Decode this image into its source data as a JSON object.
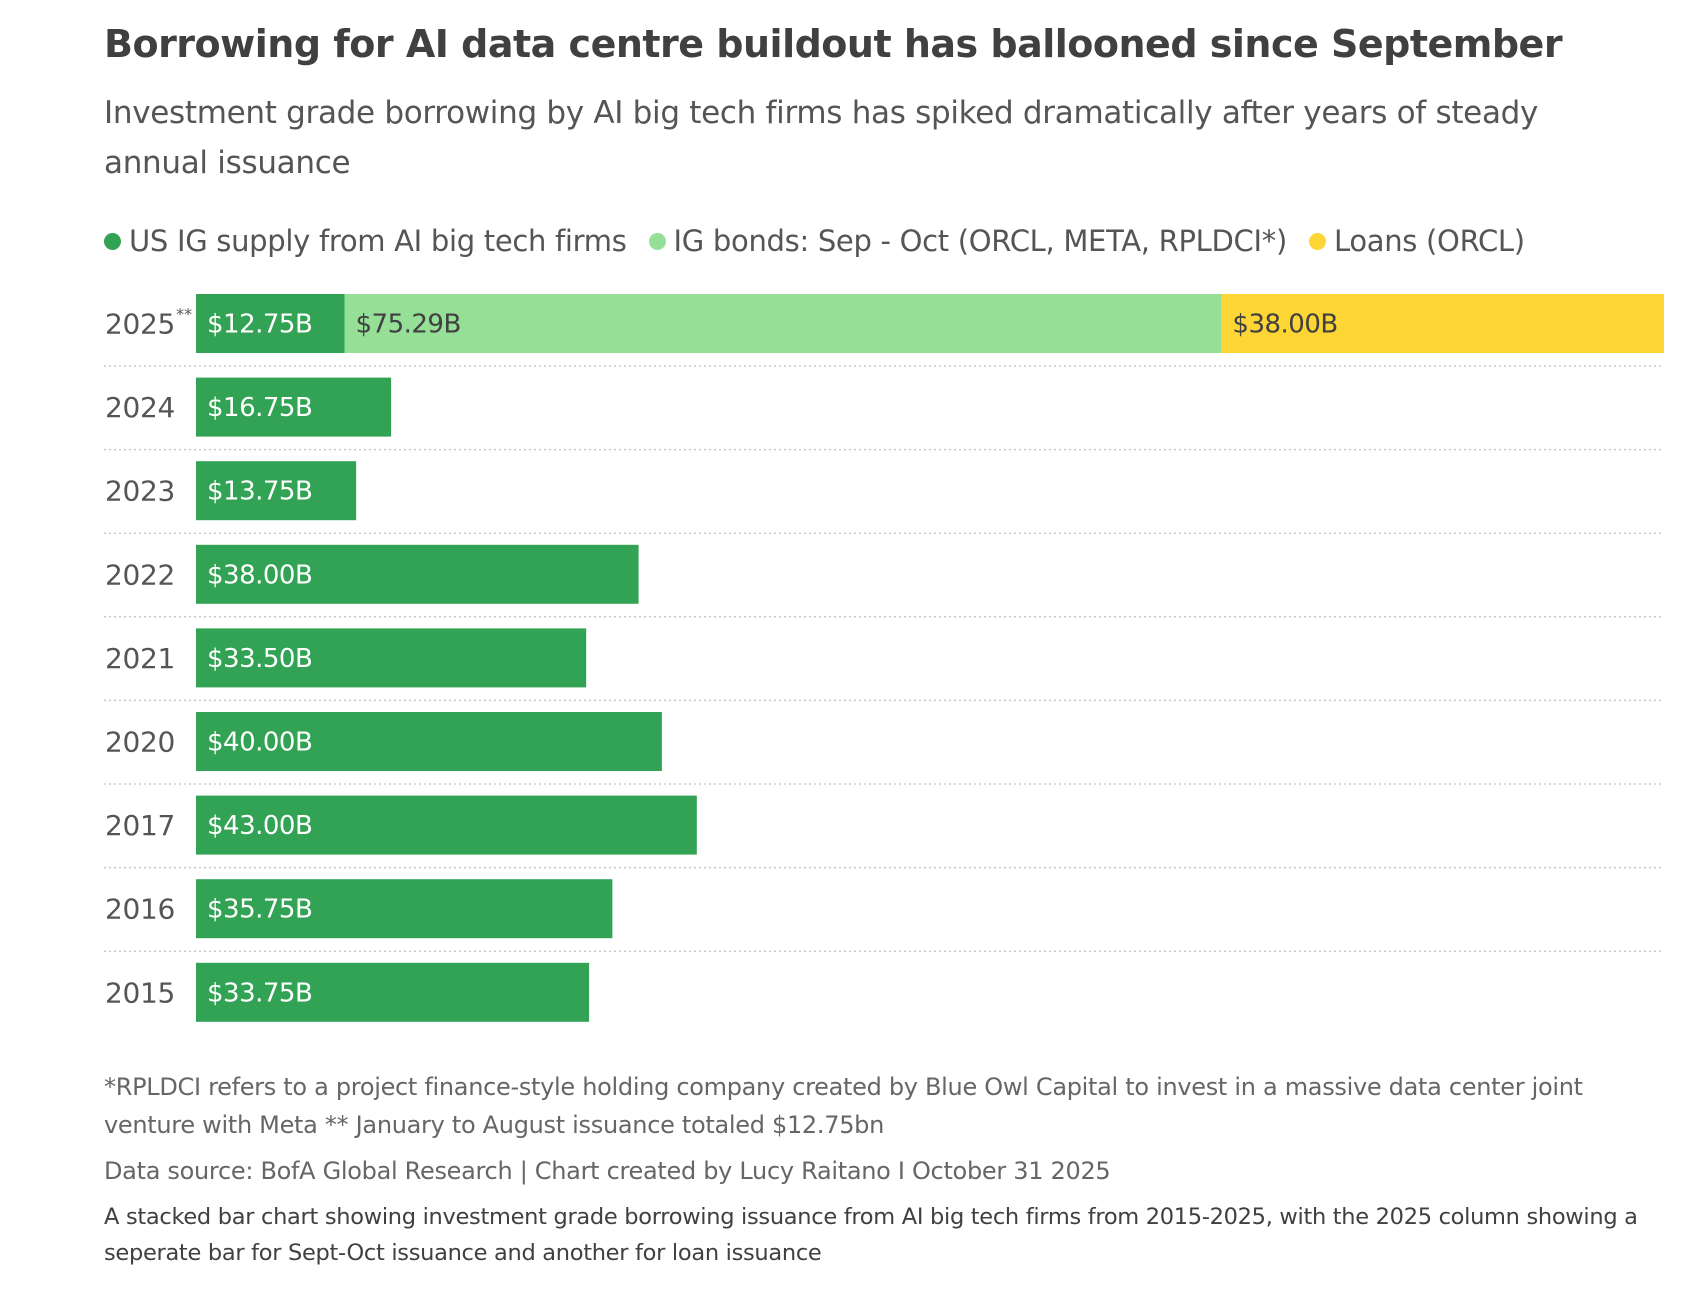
{
  "title": "Borrowing for AI data centre buildout has ballooned since September",
  "subtitle": "Investment grade borrowing by AI big tech firms has spiked dramatically after years of steady annual issuance",
  "legend": [
    {
      "label": "US IG supply from AI big tech firms",
      "color": "#32a354"
    },
    {
      "label": "IG bonds: Sep - Oct (ORCL, META, RPLDCI*)",
      "color": "#96df96"
    },
    {
      "label": "Loans (ORCL)",
      "color": "#fdd535"
    }
  ],
  "colors": {
    "base": "#32a354",
    "ig_bonds": "#96df96",
    "loans": "#fdd535",
    "gridline": "#c8c8c8"
  },
  "chart_data": {
    "type": "bar",
    "orientation": "horizontal",
    "stacked": true,
    "categories": [
      "2025",
      "2024",
      "2023",
      "2022",
      "2021",
      "2020",
      "2017",
      "2016",
      "2015"
    ],
    "category_markers": {
      "2025": "**"
    },
    "series": [
      {
        "name": "US IG supply from AI big tech firms",
        "values": [
          12.75,
          16.75,
          13.75,
          38.0,
          33.5,
          40.0,
          43.0,
          35.75,
          33.75
        ],
        "labels": [
          "$12.75B",
          "$16.75B",
          "$13.75B",
          "$38.00B",
          "$33.50B",
          "$40.00B",
          "$43.00B",
          "$35.75B",
          "$33.75B"
        ]
      },
      {
        "name": "IG bonds: Sep - Oct (ORCL, META, RPLDCI*)",
        "values": [
          75.29,
          0,
          0,
          0,
          0,
          0,
          0,
          0,
          0
        ],
        "labels": [
          "$75.29B",
          "",
          "",
          "",
          "",
          "",
          "",
          "",
          ""
        ]
      },
      {
        "name": "Loans (ORCL)",
        "values": [
          38.0,
          0,
          0,
          0,
          0,
          0,
          0,
          0,
          0
        ],
        "labels": [
          "$38.00B",
          "",
          "",
          "",
          "",
          "",
          "",
          "",
          ""
        ]
      }
    ],
    "unit": "$B",
    "xlim": [
      0,
      126.04
    ],
    "grid": false,
    "legend_position": "top-left"
  },
  "footnote": "*RPLDCI refers to a project finance-style holding company created by Blue Owl Capital to invest in a massive data center joint venture with Meta ** January to August issuance totaled $12.75bn",
  "source": "Data source: BofA Global Research | Chart created by Lucy Raitano I October 31 2025",
  "description": "A stacked bar chart showing investment grade borrowing issuance from AI big tech firms from 2015-2025, with the 2025 column showing a seperate bar for Sept-Oct issuance and another for loan issuance"
}
